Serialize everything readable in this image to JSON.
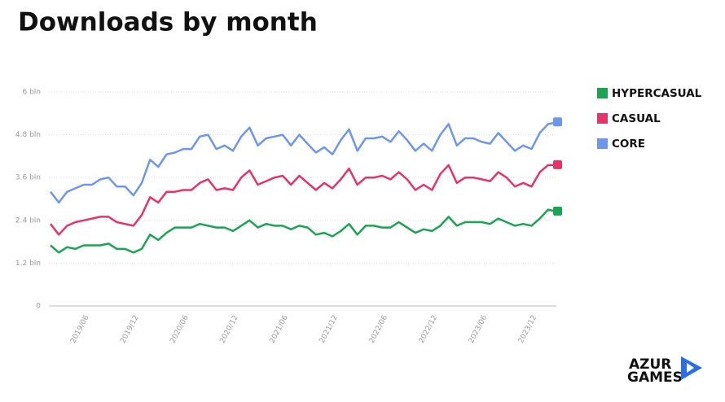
{
  "chart_data": {
    "type": "line",
    "title": "Downloads by month",
    "categories": [
      null,
      null,
      null,
      null,
      "2019/06",
      null,
      null,
      null,
      null,
      null,
      "2019/12",
      null,
      null,
      null,
      null,
      null,
      "2020/06",
      null,
      null,
      null,
      null,
      null,
      "2020/12",
      null,
      null,
      null,
      null,
      null,
      "2021/06",
      null,
      null,
      null,
      null,
      null,
      "2021/12",
      null,
      null,
      null,
      null,
      null,
      "2022/06",
      null,
      null,
      null,
      null,
      null,
      "2022/12",
      null,
      null,
      null,
      null,
      null,
      "2023/06",
      null,
      null,
      null,
      null,
      null,
      "2023/12",
      null,
      null,
      null
    ],
    "series": [
      {
        "name": "HYPERCASUAL",
        "color": "#1aa552",
        "values": [
          1.7,
          1.5,
          1.65,
          1.6,
          1.7,
          1.7,
          1.7,
          1.75,
          1.6,
          1.6,
          1.5,
          1.6,
          2.0,
          1.85,
          2.05,
          2.2,
          2.2,
          2.2,
          2.3,
          2.25,
          2.2,
          2.2,
          2.1,
          2.25,
          2.4,
          2.2,
          2.3,
          2.25,
          2.25,
          2.15,
          2.25,
          2.2,
          2.0,
          2.05,
          1.95,
          2.1,
          2.3,
          2.0,
          2.25,
          2.25,
          2.2,
          2.2,
          2.35,
          2.2,
          2.05,
          2.15,
          2.1,
          2.25,
          2.5,
          2.25,
          2.35,
          2.35,
          2.35,
          2.3,
          2.45,
          2.35,
          2.25,
          2.3,
          2.25,
          2.45,
          2.7,
          2.65
        ]
      },
      {
        "name": "CASUAL",
        "color": "#e8336a",
        "values": [
          2.3,
          2.0,
          2.25,
          2.35,
          2.4,
          2.45,
          2.5,
          2.5,
          2.35,
          2.3,
          2.25,
          2.55,
          3.05,
          2.9,
          3.2,
          3.2,
          3.25,
          3.25,
          3.45,
          3.55,
          3.25,
          3.3,
          3.25,
          3.6,
          3.8,
          3.4,
          3.5,
          3.6,
          3.65,
          3.4,
          3.65,
          3.45,
          3.25,
          3.45,
          3.3,
          3.55,
          3.85,
          3.4,
          3.6,
          3.6,
          3.65,
          3.55,
          3.75,
          3.55,
          3.25,
          3.4,
          3.25,
          3.7,
          3.95,
          3.45,
          3.6,
          3.6,
          3.55,
          3.5,
          3.75,
          3.6,
          3.35,
          3.45,
          3.35,
          3.75,
          3.95,
          3.95
        ]
      },
      {
        "name": "CORE",
        "color": "#6d96ef",
        "values": [
          3.2,
          2.9,
          3.2,
          3.3,
          3.4,
          3.4,
          3.55,
          3.6,
          3.35,
          3.35,
          3.1,
          3.45,
          4.1,
          3.9,
          4.25,
          4.3,
          4.4,
          4.4,
          4.75,
          4.8,
          4.4,
          4.5,
          4.35,
          4.75,
          5.0,
          4.5,
          4.7,
          4.75,
          4.8,
          4.5,
          4.8,
          4.55,
          4.3,
          4.45,
          4.25,
          4.65,
          4.95,
          4.35,
          4.7,
          4.7,
          4.75,
          4.6,
          4.9,
          4.65,
          4.35,
          4.55,
          4.35,
          4.8,
          5.1,
          4.5,
          4.7,
          4.7,
          4.6,
          4.55,
          4.85,
          4.6,
          4.35,
          4.5,
          4.4,
          4.85,
          5.1,
          5.15
        ]
      }
    ],
    "ylim": [
      0,
      6
    ],
    "yticks": [
      0,
      {
        "value": 1.2,
        "label": "1.2 bln"
      },
      {
        "value": 2.4,
        "label": "2.4 bln"
      },
      {
        "value": 3.6,
        "label": "3.6 bln"
      },
      {
        "value": 4.8,
        "label": "4.8 bln"
      },
      {
        "value": 6,
        "label": "6 bln"
      }
    ],
    "grid": true,
    "legend": "right"
  },
  "logo": [
    "AZUR",
    "GAMES"
  ]
}
